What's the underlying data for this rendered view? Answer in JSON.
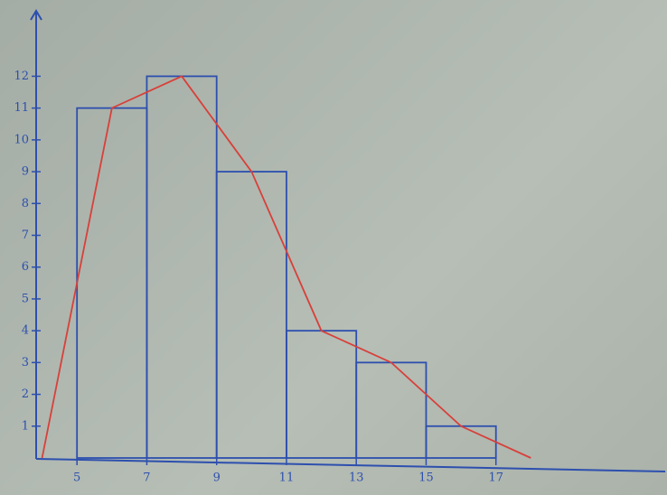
{
  "chart_data": {
    "type": "histogram",
    "bins": [
      5,
      7,
      9,
      11,
      13,
      15,
      17
    ],
    "counts": [
      11,
      12,
      9,
      4,
      3,
      1
    ],
    "color": "#2d4fae",
    "polygon": {
      "x": [
        4,
        6,
        8,
        10,
        12,
        14,
        16,
        18
      ],
      "values": [
        0,
        11,
        12,
        9,
        4,
        3,
        1,
        0
      ],
      "color": "#d8403a"
    },
    "xlim": [
      3.83,
      21.9
    ],
    "ylim": [
      0,
      14
    ],
    "xticks": [
      5,
      7,
      9,
      11,
      13,
      15,
      17
    ],
    "yticks": [
      1,
      2,
      3,
      4,
      5,
      6,
      7,
      8,
      9,
      10,
      11,
      12
    ]
  }
}
